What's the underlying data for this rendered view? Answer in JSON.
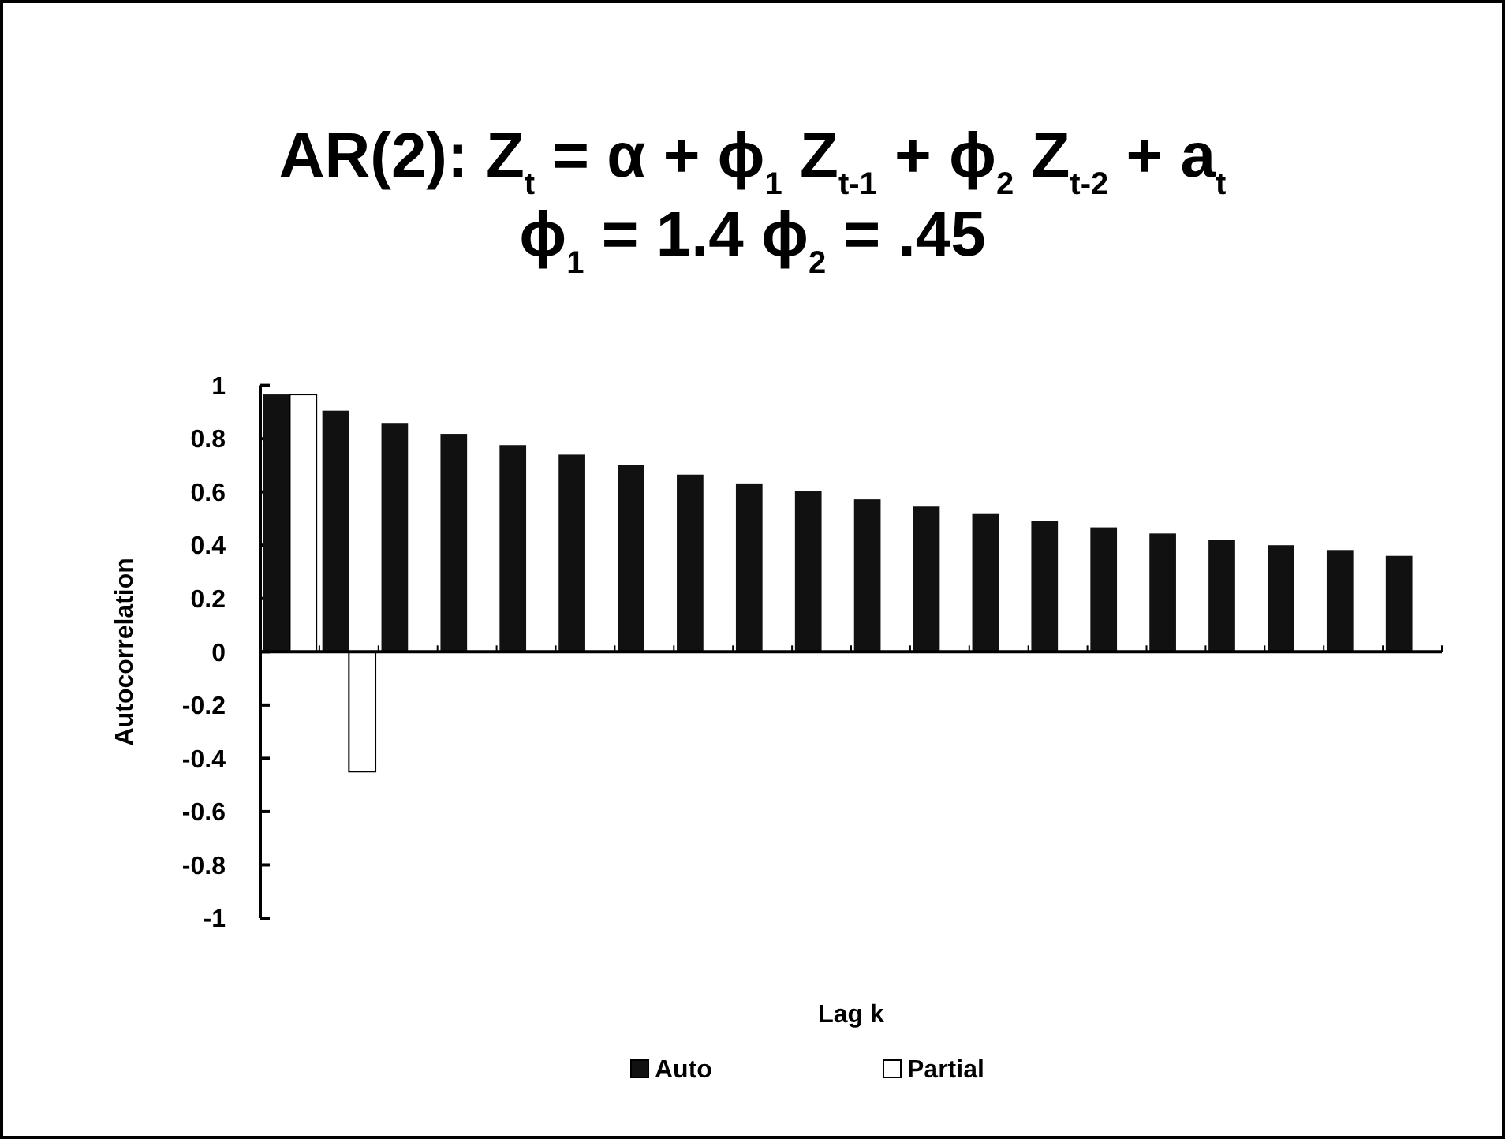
{
  "chart_data": {
    "type": "bar",
    "title": "AR(2):  Z$_{t}$ = α + ϕ$_{1}$ Z$_{t-1}$ + ϕ$_{2}$ Z$_{t-2}$ + a$_{t}$",
    "subtitle": "ϕ$_{1}$ = 1.4  ϕ$_{2}$ = .45",
    "xlabel": "Lag k",
    "ylabel": "Autocorrelation",
    "categories": [
      null,
      null,
      null,
      null,
      null,
      null,
      null,
      null,
      null,
      null,
      null,
      null,
      null,
      null,
      null,
      null,
      null,
      null,
      null,
      null
    ],
    "series": [
      {
        "name": "Auto",
        "color": "#111111",
        "values": [
          0.966,
          0.905,
          0.859,
          0.818,
          0.776,
          0.74,
          0.7,
          0.665,
          0.632,
          0.604,
          0.572,
          0.545,
          0.517,
          0.491,
          0.467,
          0.444,
          0.42,
          0.4,
          0.382,
          0.36
        ]
      },
      {
        "name": "Partial",
        "color": "#ffffff",
        "values": [
          0.966,
          -0.45,
          null,
          null,
          null,
          null,
          null,
          null,
          null,
          null,
          null,
          null,
          null,
          null,
          null,
          null,
          null,
          null,
          null,
          null
        ]
      }
    ],
    "ylim": [
      -1,
      1
    ],
    "yticks": [
      -1,
      -0.8,
      -0.6,
      -0.4,
      -0.2,
      0,
      0.2,
      0.4,
      0.6,
      0.8,
      1
    ],
    "legend": "bottom"
  }
}
